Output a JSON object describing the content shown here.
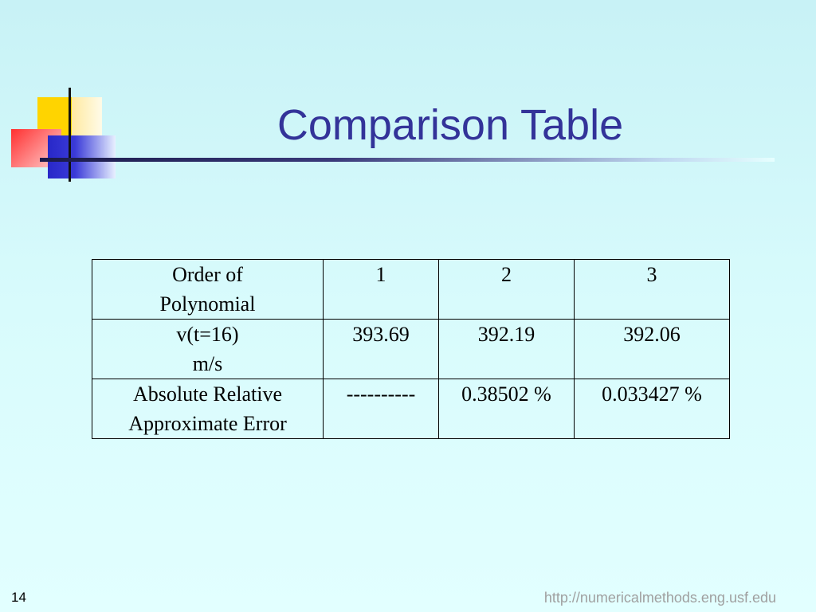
{
  "title": "Comparison Table",
  "table": {
    "rows": [
      [
        "Order of\nPolynomial",
        "1",
        "2",
        "3"
      ],
      [
        "v(t=16)\nm/s",
        "393.69",
        "392.19",
        "392.06"
      ],
      [
        "Absolute Relative\nApproximate Error",
        "----------",
        "0.38502 %",
        "0.033427 %"
      ]
    ]
  },
  "footer": {
    "page": "14",
    "url": "http://numericalmethods.eng.usf.edu"
  }
}
